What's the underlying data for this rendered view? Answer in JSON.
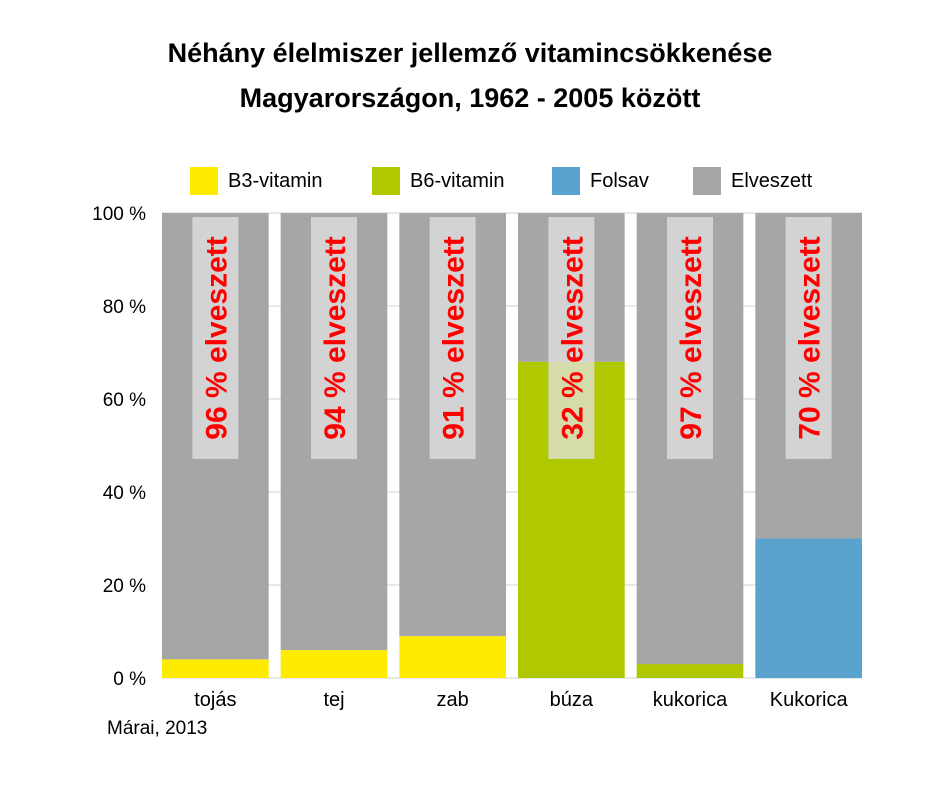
{
  "chart_data": {
    "type": "bar",
    "stacked": true,
    "title": [
      "Néhány élelmiszer jellemző vitamincsökkenése",
      "Magyarországon, 1962 - 2005 között"
    ],
    "categories": [
      "tojás",
      "tej",
      "zab",
      "búza",
      "kukorica",
      "Kukorica"
    ],
    "series": [
      {
        "name": "B3-vitamin",
        "color": "#ffeb00",
        "values": [
          4,
          6,
          9,
          0,
          0,
          0
        ]
      },
      {
        "name": "B6-vitamin",
        "color": "#b0c800",
        "values": [
          0,
          0,
          0,
          68,
          3,
          0
        ]
      },
      {
        "name": "Folsav",
        "color": "#5ba3cf",
        "values": [
          0,
          0,
          0,
          0,
          0,
          30
        ]
      },
      {
        "name": "Elveszett",
        "color": "#a6a6a6",
        "values": [
          96,
          94,
          91,
          32,
          97,
          70
        ]
      }
    ],
    "annotations": [
      "96 % elveszett",
      "94 % elveszett",
      "91 % elveszett",
      "32 % elveszett",
      "97 % elveszett",
      "70 % elveszett"
    ],
    "yticks": [
      "0 %",
      "20 %",
      "40 %",
      "60 %",
      "80 %",
      "100 %"
    ],
    "ylim": [
      0,
      100
    ],
    "grid": true,
    "legend_position": "top",
    "source": "Márai, 2013"
  }
}
